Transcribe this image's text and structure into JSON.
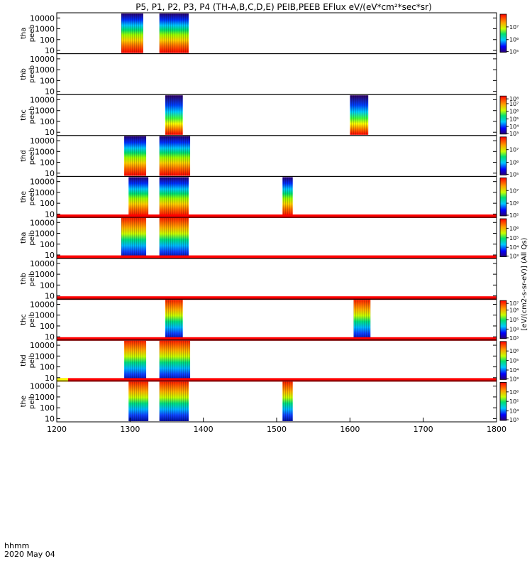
{
  "title": "P5, P1, P2, P3, P4 (TH-A,B,C,D,E) PEIB,PEEB EFlux eV/(eV*cm²*sec*sr)",
  "time_axis": {
    "label_line1": "hhmm",
    "label_line2": "2020 May 04",
    "ticks": [
      "1200",
      "1300",
      "1400",
      "1500",
      "1600",
      "1700",
      "1800"
    ]
  },
  "colorbar_label": "[eV/(cm2-s-sr-eV)] (All Qs)",
  "chart_data": [
    {
      "type": "heatmap",
      "probe": "tha",
      "dataset": "peeb",
      "ylabel": [
        "tha",
        "peeb"
      ],
      "yscale": "log",
      "ylim": [
        5,
        30000
      ],
      "yticks": [
        "10",
        "100",
        "1000",
        "10000"
      ],
      "xlim": [
        1200,
        1800
      ],
      "colorbar": {
        "scale": "log",
        "ticks": [
          "10⁵",
          "10⁶",
          "10⁷"
        ],
        "range": [
          100000,
          100000000
        ]
      },
      "data_intervals": [
        [
          1288,
          1318
        ],
        [
          1340,
          1380
        ]
      ],
      "features": "energetic electron fluxes, red at low energies to blue at high energies",
      "status_bar": null
    },
    {
      "type": "heatmap",
      "probe": "thb",
      "dataset": "peeb",
      "ylabel": [
        "thb",
        "peeb"
      ],
      "yscale": "log",
      "ylim": [
        5,
        30000
      ],
      "yticks": [
        "10",
        "100",
        "1000",
        "10000"
      ],
      "xlim": [
        1200,
        1800
      ],
      "colorbar": null,
      "data_intervals": [],
      "status_bar": null
    },
    {
      "type": "heatmap",
      "probe": "thc",
      "dataset": "peeb",
      "ylabel": [
        "thc",
        "peeb"
      ],
      "yscale": "log",
      "ylim": [
        5,
        30000
      ],
      "yticks": [
        "10",
        "100",
        "1000",
        "10000"
      ],
      "xlim": [
        1200,
        1800
      ],
      "colorbar": {
        "scale": "log",
        "ticks": [
          "10³",
          "10⁴",
          "10⁵",
          "10⁶",
          "10⁷",
          "10⁸"
        ],
        "range": [
          1000,
          100000000
        ]
      },
      "data_intervals": [
        [
          1348,
          1372
        ],
        [
          1600,
          1625
        ]
      ],
      "status_bar": null
    },
    {
      "type": "heatmap",
      "probe": "thd",
      "dataset": "peeb",
      "ylabel": [
        "thd",
        "peeb"
      ],
      "yscale": "log",
      "ylim": [
        5,
        30000
      ],
      "yticks": [
        "10",
        "100",
        "1000",
        "10000"
      ],
      "xlim": [
        1200,
        1800
      ],
      "colorbar": {
        "scale": "log",
        "ticks": [
          "10⁵",
          "10⁶",
          "10⁷"
        ],
        "range": [
          100000,
          100000000
        ]
      },
      "data_intervals": [
        [
          1292,
          1322
        ],
        [
          1340,
          1382
        ]
      ],
      "status_bar": null
    },
    {
      "type": "heatmap",
      "probe": "the",
      "dataset": "peeb",
      "ylabel": [
        "the",
        "peeb"
      ],
      "yscale": "log",
      "ylim": [
        5,
        30000
      ],
      "yticks": [
        "10",
        "100",
        "1000",
        "10000"
      ],
      "xlim": [
        1200,
        1800
      ],
      "colorbar": {
        "scale": "log",
        "ticks": [
          "10⁵",
          "10⁶",
          "10⁷"
        ],
        "range": [
          100000,
          100000000
        ]
      },
      "data_intervals": [
        [
          1298,
          1325
        ],
        [
          1340,
          1380
        ],
        [
          1508,
          1522
        ]
      ],
      "status_bar": "red"
    },
    {
      "type": "heatmap",
      "probe": "tha",
      "dataset": "peib",
      "ylabel": [
        "tha",
        "peib"
      ],
      "yscale": "log",
      "ylim": [
        5,
        30000
      ],
      "yticks": [
        "10",
        "100",
        "1000",
        "10000"
      ],
      "xlim": [
        1200,
        1800
      ],
      "colorbar": {
        "scale": "log",
        "ticks": [
          "10³",
          "10⁴",
          "10⁵",
          "10⁶"
        ],
        "range": [
          1000,
          10000000
        ]
      },
      "data_intervals": [
        [
          1288,
          1322
        ],
        [
          1340,
          1380
        ]
      ],
      "status_bar": "red"
    },
    {
      "type": "heatmap",
      "probe": "thb",
      "dataset": "peib",
      "ylabel": [
        "thb",
        "peib"
      ],
      "yscale": "log",
      "ylim": [
        5,
        30000
      ],
      "yticks": [
        "10",
        "100",
        "1000",
        "10000"
      ],
      "xlim": [
        1200,
        1800
      ],
      "colorbar": null,
      "data_intervals": [],
      "status_bar": "red"
    },
    {
      "type": "heatmap",
      "probe": "thc",
      "dataset": "peib",
      "ylabel": [
        "thc",
        "peib"
      ],
      "yscale": "log",
      "ylim": [
        5,
        30000
      ],
      "yticks": [
        "10",
        "100",
        "1000",
        "10000"
      ],
      "xlim": [
        1200,
        1800
      ],
      "colorbar": {
        "scale": "log",
        "ticks": [
          "10³",
          "10⁴",
          "10⁵",
          "10⁶",
          "10⁷"
        ],
        "range": [
          1000,
          10000000
        ]
      },
      "data_intervals": [
        [
          1348,
          1372
        ],
        [
          1605,
          1628
        ]
      ],
      "status_bar": "red"
    },
    {
      "type": "heatmap",
      "probe": "thd",
      "dataset": "peib",
      "ylabel": [
        "thd",
        "peib"
      ],
      "yscale": "log",
      "ylim": [
        5,
        30000
      ],
      "yticks": [
        "10",
        "100",
        "1000",
        "10000"
      ],
      "xlim": [
        1200,
        1800
      ],
      "colorbar": {
        "scale": "log",
        "ticks": [
          "10³",
          "10⁴",
          "10⁵",
          "10⁶"
        ],
        "range": [
          1000,
          10000000
        ]
      },
      "data_intervals": [
        [
          1292,
          1322
        ],
        [
          1340,
          1382
        ]
      ],
      "status_bar": "red",
      "status_bar_leading_color": "yellow"
    },
    {
      "type": "heatmap",
      "probe": "the",
      "dataset": "peib",
      "ylabel": [
        "the",
        "peib"
      ],
      "yscale": "log",
      "ylim": [
        5,
        30000
      ],
      "yticks": [
        "10",
        "100",
        "1000",
        "10000"
      ],
      "xlim": [
        1200,
        1800
      ],
      "colorbar": {
        "scale": "log",
        "ticks": [
          "10³",
          "10⁴",
          "10⁵",
          "10⁶"
        ],
        "range": [
          1000,
          10000000
        ]
      },
      "data_intervals": [
        [
          1298,
          1325
        ],
        [
          1340,
          1380
        ],
        [
          1508,
          1522
        ]
      ],
      "status_bar": null
    }
  ]
}
